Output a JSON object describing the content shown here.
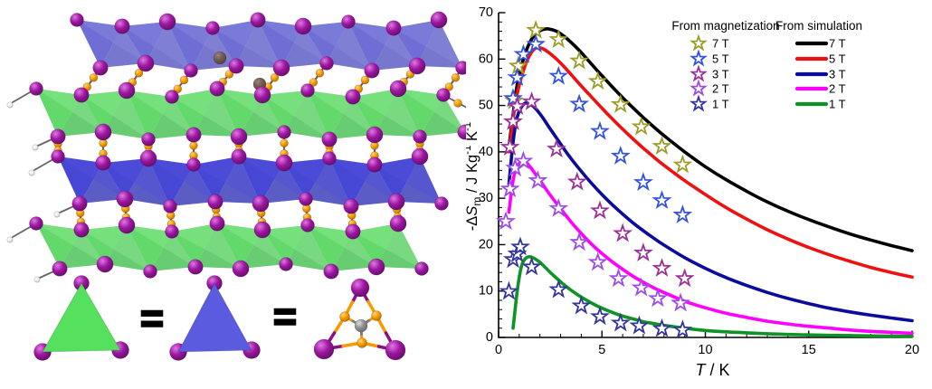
{
  "left_panel": {
    "equals_sign": "=",
    "structure_colors": {
      "purple_atom": "#9c16a0",
      "orange_atom": "#f59b00",
      "gray_atom": "#8f8f8f",
      "dark_atom": "#6f5a50",
      "hydrogen_atom": "#f0f0f0",
      "bond": "#666666",
      "blue_plane_top": "#5a5ace",
      "blue_plane_top_dark": "#4343ba",
      "blue_plane_top_light": "#8a8ade",
      "blue_plane_mid": "#2d2dd0",
      "blue_plane_mid_dark": "#1d1daf",
      "blue_plane_mid_light": "#5050dc",
      "green_plane": "#4fd457",
      "green_plane_dark": "#2eb83c",
      "green_plane_light": "#8ce992",
      "green_triangle": "#55e05e",
      "blue_triangle": "#5b5be0"
    }
  },
  "chart_data": {
    "type": "line",
    "xlabel": {
      "symbol": "T",
      "rest": " / K"
    },
    "ylabel": {
      "prefix": "-Δ",
      "symbol": "S",
      "subscript": "m",
      "units_1": " / J Kg",
      "sup_1": "-1",
      "units_2": " K",
      "sup_2": "-1"
    },
    "xlim": [
      0,
      20
    ],
    "ylim": [
      0,
      70
    ],
    "xticks": [
      0,
      5,
      10,
      15,
      20
    ],
    "yticks": [
      0,
      10,
      20,
      30,
      40,
      50,
      60,
      70
    ],
    "x_minor_step": 1,
    "y_minor_step": 2,
    "grid": false,
    "legend": {
      "position": "top-right",
      "magnetization_header": "From magnetization",
      "simulation_header": "From simulation"
    },
    "series": [
      {
        "label": "7 T",
        "source": "simulation",
        "marker": "line",
        "color": "#000000",
        "x": [
          0.5,
          0.7,
          0.9,
          1.2,
          1.5,
          1.8,
          2.1,
          2.4,
          2.8,
          3.2,
          3.6,
          4,
          4.5,
          5,
          5.5,
          6,
          6.5,
          7,
          7.5,
          8,
          9,
          10,
          11,
          12,
          13,
          14,
          15,
          16,
          17,
          18,
          19,
          20
        ],
        "y": [
          41,
          48,
          54.5,
          60,
          63.5,
          65.5,
          66.3,
          66.5,
          66,
          64.8,
          63.2,
          61.4,
          58.9,
          56.4,
          54,
          51.7,
          49.5,
          47.4,
          45.4,
          43.5,
          40,
          36.8,
          34,
          31.5,
          29.2,
          27.2,
          25.4,
          23.8,
          22.3,
          21,
          19.8,
          18.7
        ]
      },
      {
        "label": "5 T",
        "source": "simulation",
        "marker": "line",
        "color": "#ee1111",
        "x": [
          0.5,
          0.7,
          0.9,
          1.2,
          1.5,
          1.8,
          2.1,
          2.4,
          2.8,
          3.2,
          3.6,
          4,
          4.5,
          5,
          5.5,
          6,
          6.5,
          7,
          7.5,
          8,
          9,
          10,
          11,
          12,
          13,
          14,
          15,
          16,
          17,
          18,
          19,
          20
        ],
        "y": [
          40,
          47,
          52.5,
          57.5,
          60.8,
          62.4,
          62.3,
          61.5,
          60,
          58.2,
          56.2,
          54.2,
          51.8,
          49.4,
          47.1,
          44.9,
          42.8,
          40.8,
          38.9,
          37.1,
          33.8,
          30.8,
          28,
          25.5,
          23.2,
          21.2,
          19.4,
          17.8,
          16.4,
          15.1,
          14,
          13
        ]
      },
      {
        "label": "3 T",
        "source": "simulation",
        "marker": "line",
        "color": "#0c0c9c",
        "x": [
          0.5,
          0.7,
          0.9,
          1.2,
          1.5,
          1.8,
          2.1,
          2.4,
          2.8,
          3.2,
          3.6,
          4,
          4.5,
          5,
          5.5,
          6,
          6.5,
          7,
          7.5,
          8,
          9,
          10,
          11,
          12,
          13,
          14,
          15,
          16,
          17,
          18,
          19,
          20
        ],
        "y": [
          33,
          42,
          47.5,
          50.2,
          50.4,
          49.3,
          47.6,
          45.6,
          43,
          40.4,
          38,
          35.8,
          33.2,
          30.8,
          28.6,
          26.6,
          24.7,
          23,
          21.4,
          19.9,
          17.2,
          14.9,
          12.9,
          11.2,
          9.7,
          8.4,
          7.3,
          6.3,
          5.5,
          4.8,
          4.2,
          3.6
        ]
      },
      {
        "label": "2 T",
        "source": "simulation",
        "marker": "line",
        "color": "#ff00ff",
        "x": [
          0.5,
          0.7,
          0.9,
          1.2,
          1.5,
          1.8,
          2.1,
          2.4,
          2.8,
          3.2,
          3.6,
          4,
          4.5,
          5,
          5.5,
          6,
          6.5,
          7,
          7.5,
          8,
          9,
          10,
          11,
          12,
          13,
          14,
          15,
          16,
          17,
          18,
          19,
          20
        ],
        "y": [
          27,
          33.8,
          36.8,
          38.1,
          36.9,
          35.1,
          33.2,
          31.3,
          28.9,
          26.6,
          24.4,
          22.4,
          20.1,
          18.1,
          16.3,
          14.7,
          13.2,
          11.9,
          10.7,
          9.7,
          7.8,
          6.4,
          5.2,
          4.3,
          3.5,
          2.9,
          2.4,
          2,
          1.6,
          1.3,
          1.1,
          0.9
        ]
      },
      {
        "label": "1 T",
        "source": "simulation",
        "marker": "line",
        "color": "#0e9325",
        "x": [
          0.7,
          0.8,
          0.9,
          1,
          1.1,
          1.2,
          1.35,
          1.5,
          1.7,
          2,
          2.3,
          2.6,
          3,
          3.5,
          4,
          4.5,
          5,
          5.5,
          6,
          6.5,
          7,
          7.5,
          8,
          9,
          10,
          11,
          12,
          13,
          14,
          15,
          16,
          17,
          18,
          19,
          20
        ],
        "y": [
          2,
          6,
          10,
          13,
          15.2,
          16.4,
          17.2,
          17.4,
          17.1,
          16.2,
          14.9,
          13.6,
          12,
          10.2,
          8.7,
          7.4,
          6.3,
          5.4,
          4.6,
          4,
          3.4,
          3,
          2.6,
          2,
          1.5,
          1.2,
          1,
          0.8,
          0.65,
          0.55,
          0.45,
          0.4,
          0.33,
          0.28,
          0.24
        ]
      },
      {
        "label": "7 T",
        "source": "magnetization",
        "marker": "star",
        "color": "#9c9c28",
        "x": [
          0.75,
          0.95,
          1.8,
          2.9,
          3.9,
          4.8,
          5.9,
          6.9,
          7.9,
          8.9
        ],
        "y": [
          51,
          58.5,
          66.2,
          64.2,
          59.6,
          55.2,
          50.2,
          45.4,
          41.2,
          37.2
        ]
      },
      {
        "label": "5 T",
        "source": "magnetization",
        "marker": "star",
        "color": "#3352e0",
        "x": [
          0.7,
          0.9,
          1.2,
          1.8,
          2.9,
          3.9,
          4.9,
          5.9,
          7,
          7.9,
          8.9
        ],
        "y": [
          51.5,
          56,
          61,
          63.2,
          56.3,
          50.3,
          44.4,
          39.1,
          33.4,
          29.5,
          26.4
        ]
      },
      {
        "label": "3 T",
        "source": "magnetization",
        "marker": "star",
        "color": "#9b3096",
        "x": [
          0.55,
          0.7,
          0.9,
          1.6,
          2.8,
          3.8,
          4.9,
          6,
          7,
          7.9,
          9
        ],
        "y": [
          41,
          46.5,
          49.8,
          50.8,
          40.6,
          33.5,
          27.3,
          22.4,
          18.2,
          14.9,
          12.7
        ]
      },
      {
        "label": "2 T",
        "source": "magnetization",
        "marker": "star",
        "color": "#9d4ce8",
        "x": [
          0.35,
          0.55,
          0.8,
          1.2,
          1.9,
          2.9,
          3.9,
          4.8,
          5.8,
          6.9,
          7.7,
          8.8
        ],
        "y": [
          25,
          32,
          36.5,
          38,
          33.8,
          27.8,
          20.5,
          16.2,
          12.7,
          10.7,
          8.4,
          7.4
        ]
      },
      {
        "label": "1 T",
        "source": "magnetization",
        "marker": "star",
        "color": "#34349e",
        "x": [
          0.5,
          0.7,
          0.9,
          1.05,
          1.6,
          2.9,
          4,
          4.9,
          5.9,
          6.8,
          7.9,
          8.9
        ],
        "y": [
          9.9,
          16.8,
          18,
          19.5,
          15.2,
          10.3,
          6.8,
          4.5,
          3.1,
          2.5,
          1.9,
          1.6
        ]
      }
    ]
  }
}
